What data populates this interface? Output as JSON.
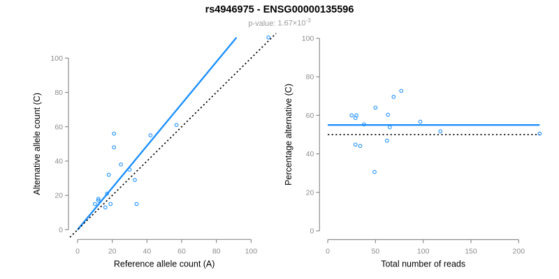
{
  "header": {
    "title": "rs4946975 - ENSG00000135596",
    "pvalue_label": "p-value:",
    "pvalue_mantissa": "1.67",
    "pvalue_times": "×10",
    "pvalue_exponent": "-3"
  },
  "colors": {
    "accent_blue": "#1E90FF",
    "axis_gray": "#8C8C8C",
    "tick_label_gray": "#8C8C8C",
    "axis_title_black": "#000000",
    "subtitle_gray": "#9A9A9A",
    "identity_black": "#000000"
  },
  "chart_data": [
    {
      "id": "ref-vs-alt-scatter",
      "type": "scatter",
      "xlabel": "Reference allele count (A)",
      "ylabel": "Alternative allele count (C)",
      "xticks": [
        0,
        20,
        40,
        60,
        80,
        100
      ],
      "yticks": [
        0,
        20,
        40,
        60,
        80,
        100
      ],
      "xlim": [
        -4.4,
        114.4
      ],
      "ylim": [
        -4.5,
        116.5
      ],
      "grid": false,
      "marker": "open-circle",
      "points": [
        [
          110,
          112
        ],
        [
          21,
          56
        ],
        [
          21,
          48
        ],
        [
          42,
          55
        ],
        [
          57,
          61
        ],
        [
          25,
          38
        ],
        [
          30,
          35
        ],
        [
          18,
          32
        ],
        [
          33,
          29
        ],
        [
          17,
          21
        ],
        [
          12,
          18
        ],
        [
          12,
          17
        ],
        [
          10,
          15
        ],
        [
          19,
          15
        ],
        [
          16,
          13
        ],
        [
          34,
          15
        ]
      ],
      "lines": [
        {
          "name": "fit-line",
          "style": "solid",
          "color_key": "accent_blue",
          "x1": 0,
          "y1": 0,
          "x2": 91.6,
          "y2": 112
        },
        {
          "name": "identity-line",
          "style": "dotted",
          "color_key": "identity_black",
          "x1": -4.4,
          "y1": -4.4,
          "x2": 114.4,
          "y2": 114.4
        }
      ]
    },
    {
      "id": "reads-vs-percentage-scatter",
      "type": "scatter",
      "xlabel": "Total number of reads",
      "ylabel": "Percentage alternative (C)",
      "xticks": [
        0,
        50,
        100,
        150,
        200
      ],
      "yticks": [
        0,
        20,
        40,
        60,
        80,
        100
      ],
      "xlim": [
        -8.9,
        230.9
      ],
      "ylim": [
        -4,
        104
      ],
      "grid": false,
      "marker": "open-circle",
      "points": [
        [
          222,
          50.5
        ],
        [
          77,
          72.7
        ],
        [
          69,
          69.6
        ],
        [
          97,
          56.7
        ],
        [
          118,
          51.7
        ],
        [
          63,
          60.3
        ],
        [
          65,
          53.8
        ],
        [
          50,
          64.0
        ],
        [
          62,
          46.8
        ],
        [
          38,
          55.3
        ],
        [
          30,
          60.0
        ],
        [
          29,
          58.6
        ],
        [
          25,
          60.0
        ],
        [
          34,
          44.1
        ],
        [
          29,
          44.8
        ],
        [
          49,
          30.6
        ]
      ],
      "lines": [
        {
          "name": "fit-line",
          "style": "solid",
          "color_key": "accent_blue",
          "x1": 0,
          "y1": 55,
          "x2": 222,
          "y2": 55
        },
        {
          "name": "identity-line",
          "style": "dotted",
          "color_key": "identity_black",
          "x1": 0,
          "y1": 50,
          "x2": 222,
          "y2": 50
        }
      ]
    }
  ]
}
